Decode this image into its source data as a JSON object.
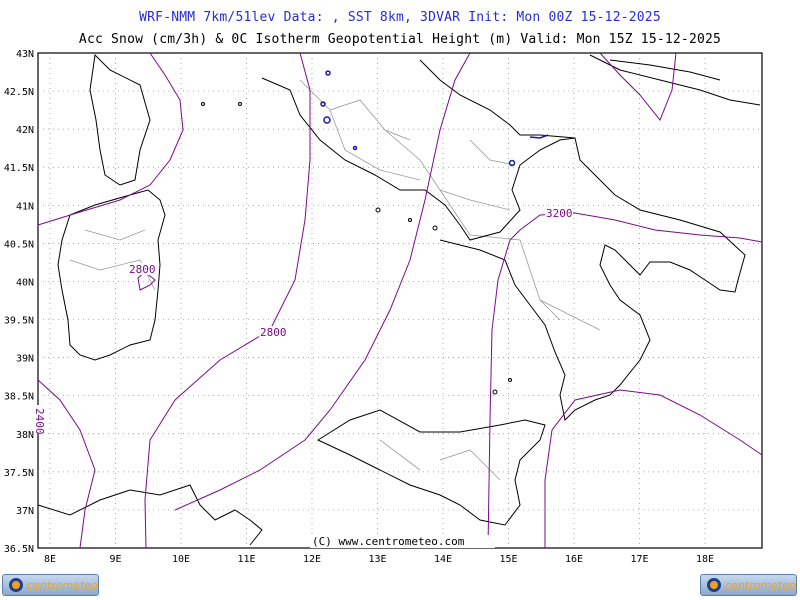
{
  "header": {
    "line1": "WRF-NMM 7km/51lev  Data: , SST 8km, 3DVAR  Init: Mon 00Z 15-12-2025",
    "line2": "Acc Snow (cm/3h) & 0C Isotherm Geopotential Height (m)  Valid: Mon 15Z 15-12-2025"
  },
  "map": {
    "lat_labels": [
      "43N",
      "42.5N",
      "42N",
      "41.5N",
      "41N",
      "40.5N",
      "40N",
      "39.5N",
      "39N",
      "38.5N",
      "38N",
      "37.5N",
      "37N",
      "36.5N"
    ],
    "lon_labels": [
      "8E",
      "9E",
      "10E",
      "11E",
      "12E",
      "13E",
      "14E",
      "15E",
      "16E",
      "17E",
      "18E"
    ],
    "contour_labels": [
      "2800",
      "2800",
      "2400",
      "3200"
    ],
    "copyright": "(C) www.centrometeo.com",
    "colors": {
      "title": "#2a2ad8",
      "contour": "#7a0b8a",
      "coast": "#000000",
      "borders": "#9a9a9a",
      "grid": "#8a8a8a",
      "snow": "#1a1aa8"
    }
  },
  "footer": {
    "logo_left": "centrometeo",
    "logo_right": "centrometeo",
    "logo_icon": "centrometeo-logo-icon"
  }
}
